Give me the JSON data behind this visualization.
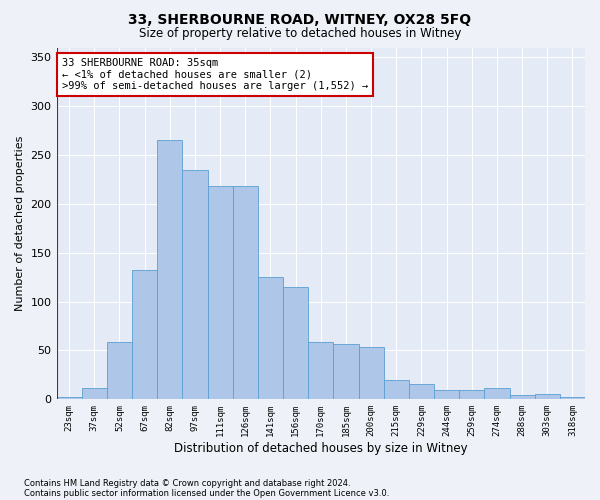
{
  "title1": "33, SHERBOURNE ROAD, WITNEY, OX28 5FQ",
  "title2": "Size of property relative to detached houses in Witney",
  "xlabel": "Distribution of detached houses by size in Witney",
  "ylabel": "Number of detached properties",
  "categories": [
    "23sqm",
    "37sqm",
    "52sqm",
    "67sqm",
    "82sqm",
    "97sqm",
    "111sqm",
    "126sqm",
    "141sqm",
    "156sqm",
    "170sqm",
    "185sqm",
    "200sqm",
    "215sqm",
    "229sqm",
    "244sqm",
    "259sqm",
    "274sqm",
    "288sqm",
    "303sqm",
    "318sqm"
  ],
  "values": [
    2,
    12,
    59,
    132,
    265,
    235,
    218,
    218,
    125,
    115,
    59,
    57,
    54,
    20,
    16,
    10,
    10,
    12,
    4,
    5,
    2
  ],
  "bar_color": "#aec6e8",
  "bar_edge_color": "#5a9fd4",
  "highlight_line_color": "#cc0000",
  "annotation_text": "33 SHERBOURNE ROAD: 35sqm\n← <1% of detached houses are smaller (2)\n>99% of semi-detached houses are larger (1,552) →",
  "annotation_box_color": "#ffffff",
  "annotation_box_edge_color": "#cc0000",
  "ylim": [
    0,
    360
  ],
  "yticks": [
    0,
    50,
    100,
    150,
    200,
    250,
    300,
    350
  ],
  "footer1": "Contains HM Land Registry data © Crown copyright and database right 2024.",
  "footer2": "Contains public sector information licensed under the Open Government Licence v3.0.",
  "bg_color": "#eef2f8",
  "plot_bg_color": "#e4eaf6"
}
